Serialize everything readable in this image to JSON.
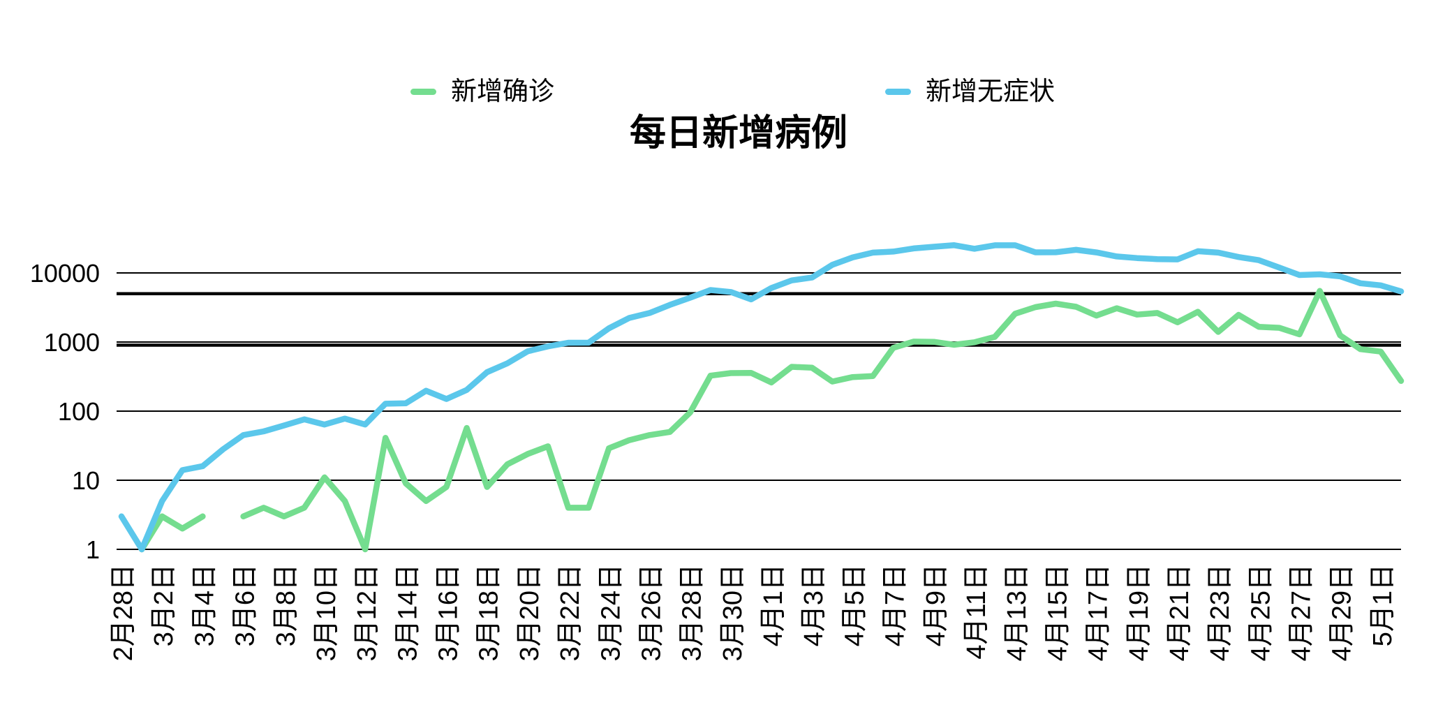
{
  "title": "每日新增病例",
  "legend": [
    {
      "id": "confirmed",
      "label": "新增确诊",
      "color": "#74DD8F"
    },
    {
      "id": "asymptomatic",
      "label": "新增无症状",
      "color": "#5BC7EB"
    }
  ],
  "axes": {
    "y_tick_labels": [
      "10000",
      "1000",
      "100",
      "10",
      "1"
    ],
    "x_tick_labels": [
      "2月28日",
      "3月2日",
      "3月4日",
      "3月6日",
      "3月8日",
      "3月10日",
      "3月12日",
      "3月14日",
      "3月16日",
      "3月18日",
      "3月20日",
      "3月22日",
      "3月24日",
      "3月26日",
      "3月28日",
      "3月30日",
      "4月1日",
      "4月3日",
      "4月5日",
      "4月7日",
      "4月9日",
      "4月11日",
      "4月13日",
      "4月15日",
      "4月17日",
      "4月19日",
      "4月21日",
      "4月23日",
      "4月25日",
      "4月27日",
      "4月29日",
      "5月1日"
    ]
  },
  "chart_data": {
    "type": "line",
    "title": "每日新增病例",
    "xlabel": "",
    "ylabel": "",
    "y_scale": "log",
    "ylim": [
      1,
      30000
    ],
    "y_ticks": [
      10000,
      1000,
      100,
      10,
      1
    ],
    "reference_lines": [
      5000,
      900
    ],
    "grid": true,
    "legend_position": "top",
    "x_tick_step": 2,
    "x": [
      "2月28日",
      "3月1日",
      "3月2日",
      "3月3日",
      "3月4日",
      "3月5日",
      "3月6日",
      "3月7日",
      "3月8日",
      "3月9日",
      "3月10日",
      "3月11日",
      "3月12日",
      "3月13日",
      "3月14日",
      "3月15日",
      "3月16日",
      "3月17日",
      "3月18日",
      "3月19日",
      "3月20日",
      "3月21日",
      "3月22日",
      "3月23日",
      "3月24日",
      "3月25日",
      "3月26日",
      "3月27日",
      "3月28日",
      "3月29日",
      "3月30日",
      "3月31日",
      "4月1日",
      "4月2日",
      "4月3日",
      "4月4日",
      "4月5日",
      "4月6日",
      "4月7日",
      "4月8日",
      "4月9日",
      "4月10日",
      "4月11日",
      "4月12日",
      "4月13日",
      "4月14日",
      "4月15日",
      "4月16日",
      "4月17日",
      "4月18日",
      "4月19日",
      "4月20日",
      "4月21日",
      "4月22日",
      "4月23日",
      "4月24日",
      "4月25日",
      "4月26日",
      "4月27日",
      "4月28日",
      "4月29日",
      "4月30日",
      "5月1日",
      "5月2日"
    ],
    "series": [
      {
        "id": "confirmed",
        "name": "新增确诊",
        "color": "#74DD8F",
        "values": [
          null,
          1,
          3,
          2,
          3,
          null,
          3,
          4,
          3,
          4,
          11,
          5,
          1,
          41,
          9,
          5,
          8,
          57,
          8,
          17,
          24,
          31,
          4,
          4,
          29,
          38,
          45,
          50,
          96,
          326,
          355,
          358,
          260,
          438,
          425,
          268,
          311,
          322,
          824,
          1015,
          1006,
          914,
          994,
          1189,
          2573,
          3200,
          3590,
          3238,
          2417,
          3084,
          2494,
          2634,
          1931,
          2736,
          1401,
          2472,
          1661,
          1606,
          1292,
          5487,
          1249,
          788,
          727,
          274
        ]
      },
      {
        "id": "asymptomatic",
        "name": "新增无症状",
        "color": "#5BC7EB",
        "values": [
          3,
          1,
          5,
          14,
          16,
          28,
          45,
          51,
          62,
          76,
          64,
          78,
          64,
          128,
          130,
          197,
          150,
          203,
          366,
          492,
          734,
          865,
          977,
          979,
          1580,
          2231,
          2631,
          3450,
          4381,
          5656,
          5298,
          4144,
          6051,
          7788,
          8581,
          13086,
          16766,
          19660,
          20398,
          22609,
          23937,
          25173,
          22348,
          25141,
          25146,
          19872,
          19923,
          21582,
          19831,
          17332,
          16407,
          15861,
          15698,
          20634,
          19657,
          16983,
          15319,
          11956,
          9330,
          9545,
          8932,
          7084,
          6606,
          5395
        ]
      }
    ]
  }
}
